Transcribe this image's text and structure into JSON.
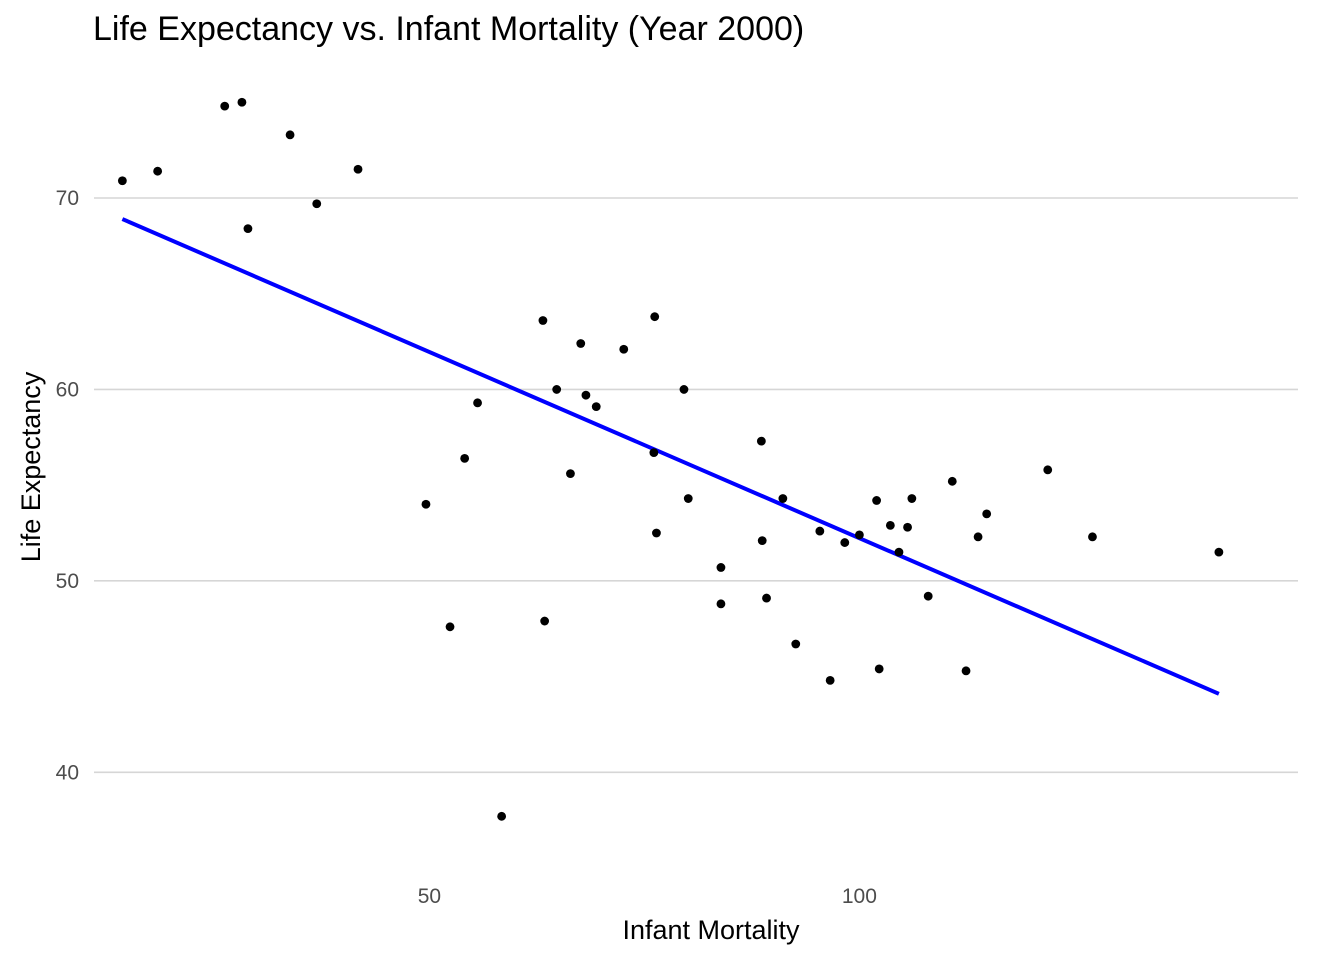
{
  "chart_data": {
    "type": "scatter",
    "title": "Life Expectancy vs. Infant Mortality (Year 2000)",
    "xlabel": "Infant Mortality",
    "ylabel": "Life Expectancy",
    "xlim": [
      11,
      151
    ],
    "ylim": [
      35,
      77
    ],
    "xticks": [
      50,
      100
    ],
    "yticks": [
      40,
      50,
      60,
      70
    ],
    "grid": "horizontal major only",
    "point_color": "#000000",
    "fit_color": "#0000ff",
    "points": [
      {
        "x": 14.3,
        "y": 70.9
      },
      {
        "x": 18.4,
        "y": 71.4
      },
      {
        "x": 26.2,
        "y": 74.8
      },
      {
        "x": 28.2,
        "y": 75.0
      },
      {
        "x": 28.9,
        "y": 68.4
      },
      {
        "x": 33.8,
        "y": 73.3
      },
      {
        "x": 36.9,
        "y": 69.7
      },
      {
        "x": 41.7,
        "y": 71.5
      },
      {
        "x": 49.6,
        "y": 54.0
      },
      {
        "x": 52.4,
        "y": 47.6
      },
      {
        "x": 54.1,
        "y": 56.4
      },
      {
        "x": 55.6,
        "y": 59.3
      },
      {
        "x": 58.4,
        "y": 37.7
      },
      {
        "x": 63.2,
        "y": 63.6
      },
      {
        "x": 63.4,
        "y": 47.9
      },
      {
        "x": 64.8,
        "y": 60.0
      },
      {
        "x": 66.4,
        "y": 55.6
      },
      {
        "x": 67.6,
        "y": 62.4
      },
      {
        "x": 68.2,
        "y": 59.7
      },
      {
        "x": 69.4,
        "y": 59.1
      },
      {
        "x": 72.6,
        "y": 62.1
      },
      {
        "x": 76.1,
        "y": 56.7
      },
      {
        "x": 76.2,
        "y": 63.8
      },
      {
        "x": 76.4,
        "y": 52.5
      },
      {
        "x": 79.6,
        "y": 60.0
      },
      {
        "x": 80.1,
        "y": 54.3
      },
      {
        "x": 83.9,
        "y": 50.7
      },
      {
        "x": 83.9,
        "y": 48.8
      },
      {
        "x": 88.6,
        "y": 57.3
      },
      {
        "x": 88.7,
        "y": 52.1
      },
      {
        "x": 89.2,
        "y": 49.1
      },
      {
        "x": 91.1,
        "y": 54.3
      },
      {
        "x": 92.6,
        "y": 46.7
      },
      {
        "x": 95.4,
        "y": 52.6
      },
      {
        "x": 96.6,
        "y": 44.8
      },
      {
        "x": 98.3,
        "y": 52.0
      },
      {
        "x": 100.0,
        "y": 52.4
      },
      {
        "x": 102.0,
        "y": 54.2
      },
      {
        "x": 102.3,
        "y": 45.4
      },
      {
        "x": 103.6,
        "y": 52.9
      },
      {
        "x": 104.6,
        "y": 51.5
      },
      {
        "x": 105.6,
        "y": 52.8
      },
      {
        "x": 106.1,
        "y": 54.3
      },
      {
        "x": 108.0,
        "y": 49.2
      },
      {
        "x": 110.8,
        "y": 55.2
      },
      {
        "x": 112.4,
        "y": 45.3
      },
      {
        "x": 113.8,
        "y": 52.3
      },
      {
        "x": 114.8,
        "y": 53.5
      },
      {
        "x": 121.9,
        "y": 55.8
      },
      {
        "x": 127.1,
        "y": 52.3
      },
      {
        "x": 141.8,
        "y": 51.5
      }
    ],
    "fit_line": {
      "x": [
        14.3,
        141.8
      ],
      "y": [
        68.9,
        44.1
      ]
    }
  }
}
